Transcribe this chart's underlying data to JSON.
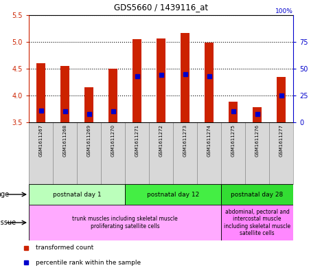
{
  "title": "GDS5660 / 1439116_at",
  "samples": [
    "GSM1611267",
    "GSM1611268",
    "GSM1611269",
    "GSM1611270",
    "GSM1611271",
    "GSM1611272",
    "GSM1611273",
    "GSM1611274",
    "GSM1611275",
    "GSM1611276",
    "GSM1611277"
  ],
  "transformed_count": [
    4.6,
    4.55,
    4.15,
    4.5,
    5.05,
    5.07,
    5.17,
    4.99,
    3.88,
    3.78,
    4.35
  ],
  "percentile_rank_pct": [
    11,
    10,
    8,
    10,
    43,
    44,
    45,
    43,
    10,
    8,
    25
  ],
  "ymin": 3.5,
  "ymax": 5.5,
  "y2min": 0,
  "y2max": 100,
  "age_groups": [
    {
      "label": "postnatal day 1",
      "start": 0,
      "end": 3,
      "color": "#bbffbb"
    },
    {
      "label": "postnatal day 12",
      "start": 4,
      "end": 7,
      "color": "#44ee44"
    },
    {
      "label": "postnatal day 28",
      "start": 8,
      "end": 10,
      "color": "#33dd33"
    }
  ],
  "tissue_groups": [
    {
      "label": "trunk muscles including skeletal muscle\nproliferating satellite cells",
      "start": 0,
      "end": 7,
      "color": "#ffaaff"
    },
    {
      "label": "abdominal, pectoral and\nintercostal muscle\nincluding skeletal muscle\nsatellite cells",
      "start": 8,
      "end": 10,
      "color": "#ff88ff"
    }
  ],
  "bar_color": "#cc2200",
  "dot_color": "#0000cc",
  "left_axis_color": "#cc2200",
  "right_axis_color": "#0000cc",
  "sample_box_color": "#d8d8d8",
  "chart_border_color": "#000000"
}
